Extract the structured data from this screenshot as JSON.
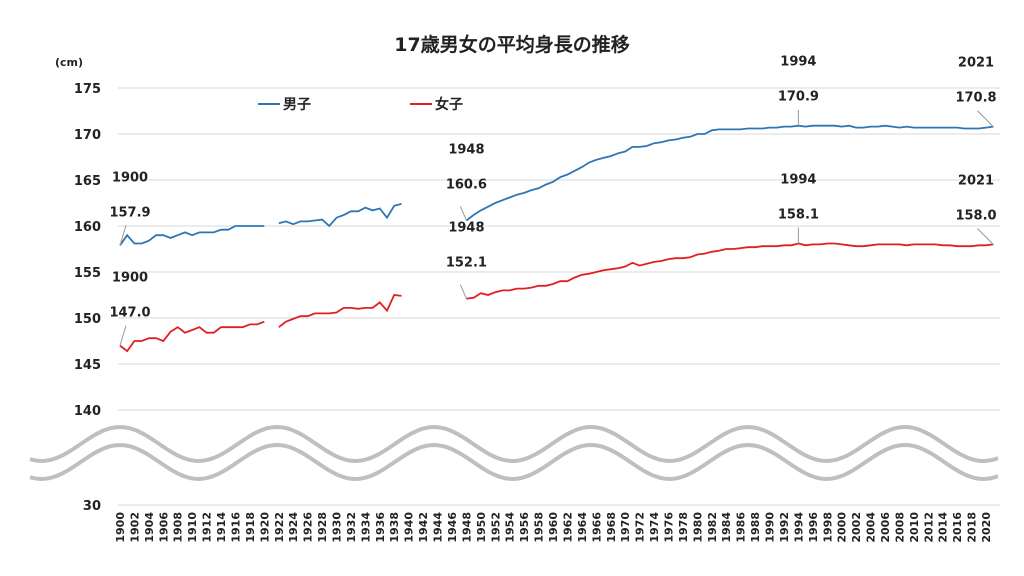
{
  "chart_data": {
    "type": "line",
    "title": "17歳男女の平均身長の推移",
    "ylabel": "(cm)",
    "ylim": [
      140,
      175
    ],
    "ylim_broken_below": "30",
    "yticks": [
      "175",
      "170",
      "165",
      "160",
      "155",
      "150",
      "145",
      "140"
    ],
    "axis_break": true,
    "grid": true,
    "legend": "top-left",
    "xlim": [
      1900,
      2021
    ],
    "xticks_step": 2,
    "series": [
      {
        "name": "男子",
        "color": "#2e75b6",
        "segments": [
          {
            "start": 1900,
            "values": [
              157.9,
              159.0,
              158.1,
              158.1,
              158.4,
              159.0,
              159.0,
              158.7,
              159.0,
              159.3,
              159.0,
              159.3,
              159.3,
              159.3,
              159.6,
              159.6,
              160.0,
              160.0,
              160.0,
              160.0,
              160.0
            ]
          },
          {
            "start": 1922,
            "values": [
              160.3,
              160.5,
              160.2,
              160.5,
              160.5,
              160.6,
              160.7,
              160.0,
              160.9,
              161.2,
              161.6,
              161.6,
              162.0,
              161.7,
              161.9,
              160.9,
              162.2,
              162.4
            ]
          },
          {
            "start": 1948,
            "values": [
              160.6,
              161.2,
              161.7,
              162.1,
              162.5,
              162.8,
              163.1,
              163.4,
              163.6,
              163.9,
              164.1,
              164.5,
              164.8,
              165.3,
              165.6,
              166.0,
              166.4,
              166.9,
              167.2,
              167.4,
              167.6,
              167.9,
              168.1,
              168.6,
              168.6,
              168.7,
              169.0,
              169.1,
              169.3,
              169.4,
              169.6,
              169.7,
              170.0,
              170.0,
              170.4,
              170.5,
              170.5,
              170.5,
              170.5,
              170.6,
              170.6,
              170.6,
              170.7,
              170.7,
              170.8,
              170.8,
              170.9,
              170.8,
              170.9,
              170.9,
              170.9,
              170.9,
              170.8,
              170.9,
              170.7,
              170.7,
              170.8,
              170.8,
              170.9,
              170.8,
              170.7,
              170.8,
              170.7,
              170.7,
              170.7,
              170.7,
              170.7,
              170.7,
              170.7,
              170.6,
              170.6,
              170.6,
              170.7,
              170.8
            ]
          }
        ],
        "annotations": [
          {
            "year": "1900",
            "value": "157.9"
          },
          {
            "year": "1948",
            "value": "160.6"
          },
          {
            "year": "1994",
            "value": "170.9"
          },
          {
            "year": "2021",
            "value": "170.8"
          }
        ]
      },
      {
        "name": "女子",
        "color": "#e02020",
        "segments": [
          {
            "start": 1900,
            "values": [
              147.0,
              146.4,
              147.5,
              147.5,
              147.8,
              147.8,
              147.5,
              148.5,
              149.0,
              148.4,
              148.7,
              149.0,
              148.4,
              148.4,
              149.0,
              149.0,
              149.0,
              149.0,
              149.3,
              149.3,
              149.6
            ]
          },
          {
            "start": 1922,
            "values": [
              149.0,
              149.6,
              149.9,
              150.2,
              150.2,
              150.5,
              150.5,
              150.5,
              150.6,
              151.1,
              151.1,
              151.0,
              151.1,
              151.1,
              151.7,
              150.8,
              152.5,
              152.4
            ]
          },
          {
            "start": 1948,
            "values": [
              152.1,
              152.2,
              152.7,
              152.5,
              152.8,
              153.0,
              153.0,
              153.2,
              153.2,
              153.3,
              153.5,
              153.5,
              153.7,
              154.0,
              154.0,
              154.4,
              154.7,
              154.8,
              155.0,
              155.2,
              155.3,
              155.4,
              155.6,
              156.0,
              155.7,
              155.9,
              156.1,
              156.2,
              156.4,
              156.5,
              156.5,
              156.6,
              156.9,
              157.0,
              157.2,
              157.3,
              157.5,
              157.5,
              157.6,
              157.7,
              157.7,
              157.8,
              157.8,
              157.8,
              157.9,
              157.9,
              158.1,
              157.9,
              158.0,
              158.0,
              158.1,
              158.1,
              158.0,
              157.9,
              157.8,
              157.8,
              157.9,
              158.0,
              158.0,
              158.0,
              158.0,
              157.9,
              158.0,
              158.0,
              158.0,
              158.0,
              157.9,
              157.9,
              157.8,
              157.8,
              157.8,
              157.9,
              157.9,
              158.0
            ]
          }
        ],
        "annotations": [
          {
            "year": "1900",
            "value": "147.0"
          },
          {
            "year": "1948",
            "value": "152.1"
          },
          {
            "year": "1994",
            "value": "158.1"
          },
          {
            "year": "2021",
            "value": "158.0"
          }
        ]
      }
    ]
  }
}
